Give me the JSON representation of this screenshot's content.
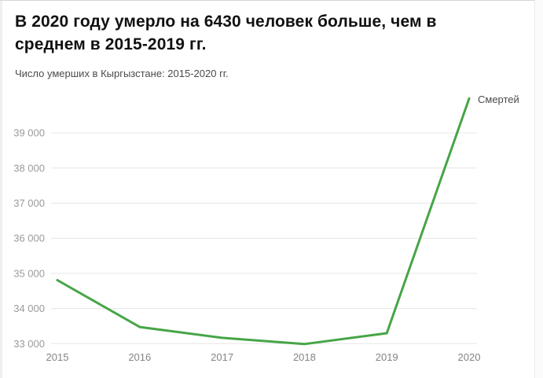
{
  "header": {
    "title_lines": [
      "В 2020 году умерло на 6430 человек больше, чем в",
      "среднем в 2015-2019 гг."
    ],
    "title": "В 2020 году умерло на 6430 человек больше, чем в среднем в 2015-2019 гг.",
    "subtitle": "Число умерших в Кыргызстане: 2015-2020 гг."
  },
  "chart_data": {
    "type": "line",
    "title": "В 2020 году умерло на 6430 человек больше, чем в среднем в 2015-2019 гг.",
    "subtitle": "Число умерших в Кыргызстане: 2015-2020 гг.",
    "categories": [
      2015,
      2016,
      2017,
      2018,
      2019,
      2020
    ],
    "xtick_labels": [
      "2015",
      "2016",
      "2017",
      "2018",
      "2019",
      "2020"
    ],
    "series": [
      {
        "name": "Смертей",
        "values": [
          34808,
          33475,
          33166,
          32989,
          33297,
          39977
        ]
      }
    ],
    "yticks": [
      33000,
      34000,
      35000,
      36000,
      37000,
      38000,
      39000
    ],
    "ytick_labels": [
      "33 000",
      "34 000",
      "35 000",
      "36 000",
      "37 000",
      "38 000",
      "39 000"
    ],
    "ylim": [
      32850,
      40100
    ],
    "grid": true,
    "legend_position": "line-end-label",
    "colors": {
      "line": "#46a546",
      "grid": "#e6e6e6",
      "ytick_label": "#9b9b9b",
      "xtick_label": "#848484",
      "series_label": "#4a4a4a"
    }
  }
}
